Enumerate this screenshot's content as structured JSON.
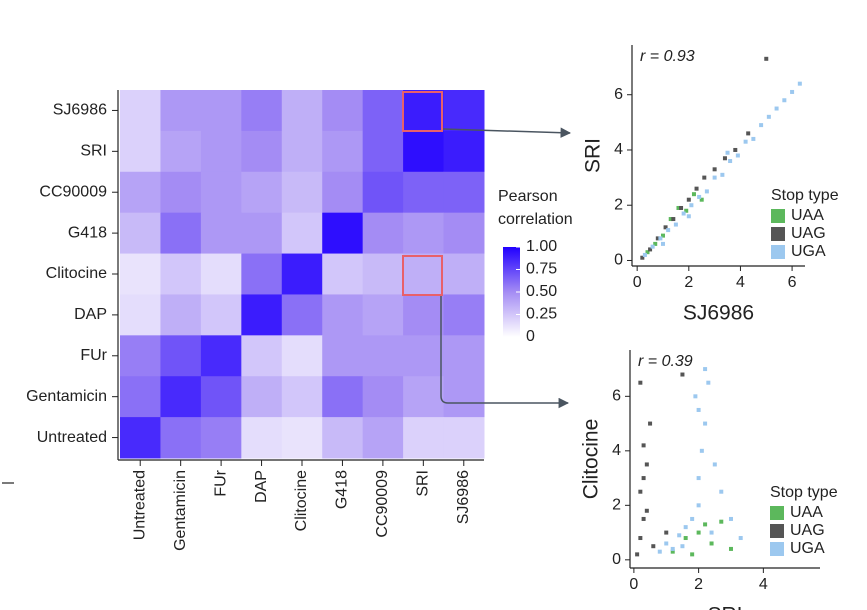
{
  "chart_data": [
    {
      "type": "heatmap",
      "rows": [
        "SJ6986",
        "SRI",
        "CC90009",
        "G418",
        "Clitocine",
        "DAP",
        "FUr",
        "Gentamicin",
        "Untreated"
      ],
      "columns": [
        "Untreated",
        "Gentamicin",
        "FUr",
        "DAP",
        "Clitocine",
        "G418",
        "CC90009",
        "SRI",
        "SJ6986"
      ],
      "values": [
        [
          0.2,
          0.45,
          0.45,
          0.55,
          0.35,
          0.5,
          0.65,
          0.9,
          0.85
        ],
        [
          0.2,
          0.4,
          0.45,
          0.5,
          0.35,
          0.45,
          0.65,
          0.95,
          0.9
        ],
        [
          0.4,
          0.5,
          0.45,
          0.4,
          0.3,
          0.5,
          0.7,
          0.65,
          0.65
        ],
        [
          0.3,
          0.6,
          0.45,
          0.45,
          0.25,
          0.95,
          0.5,
          0.45,
          0.5
        ],
        [
          0.12,
          0.25,
          0.15,
          0.6,
          0.9,
          0.25,
          0.3,
          0.35,
          0.35
        ],
        [
          0.15,
          0.35,
          0.25,
          0.9,
          0.6,
          0.45,
          0.4,
          0.5,
          0.55
        ],
        [
          0.55,
          0.7,
          0.85,
          0.25,
          0.15,
          0.45,
          0.45,
          0.45,
          0.45
        ],
        [
          0.6,
          0.85,
          0.7,
          0.35,
          0.25,
          0.6,
          0.5,
          0.4,
          0.45
        ],
        [
          0.85,
          0.6,
          0.55,
          0.15,
          0.12,
          0.3,
          0.4,
          0.2,
          0.2
        ]
      ],
      "colormap": [
        "#ffffff",
        "#a48cf4",
        "#2100ff"
      ],
      "clim": [
        0,
        1
      ],
      "legend_title": [
        "Pearson",
        "correlation"
      ],
      "cticks": [
        0,
        0.25,
        {
          "value": 0.5,
          "label": "0.50"
        },
        0.75,
        {
          "value": 1,
          "label": "1.00"
        }
      ]
    },
    {
      "type": "scatter",
      "xlabel": "SJ6986",
      "ylabel": "SRI",
      "annotation": "r = 0.93",
      "xlim": [
        -0.2,
        6.5
      ],
      "ylim": [
        -0.2,
        7.8
      ],
      "xticks": [
        0,
        2,
        4,
        6
      ],
      "yticks": [
        0,
        2,
        4,
        6
      ],
      "legend_title": "Stop type",
      "series": [
        {
          "name": "UAA",
          "color": "#5cb85c",
          "x": [
            0.4,
            0.7,
            1.0,
            1.3,
            1.6,
            1.9,
            2.2,
            2.5
          ],
          "values": [
            0.3,
            0.6,
            0.9,
            1.5,
            1.9,
            1.8,
            2.4,
            2.2
          ]
        },
        {
          "name": "UAG",
          "color": "#555555",
          "x": [
            0.2,
            0.5,
            0.8,
            1.1,
            1.4,
            1.7,
            2.0,
            2.3,
            2.6,
            3.0,
            3.4,
            3.8,
            4.3,
            5.0
          ],
          "values": [
            0.1,
            0.4,
            0.8,
            1.2,
            1.5,
            1.9,
            2.2,
            2.6,
            3.0,
            3.3,
            3.7,
            4.0,
            4.6,
            7.3
          ]
        },
        {
          "name": "UGA",
          "color": "#9cc8ef",
          "x": [
            0.3,
            0.6,
            0.9,
            1.2,
            1.5,
            1.8,
            2.1,
            2.4,
            2.7,
            3.0,
            3.3,
            3.6,
            3.9,
            4.2,
            4.5,
            4.8,
            5.1,
            5.4,
            5.7,
            6.0,
            6.3,
            2.0,
            3.5,
            1.0
          ],
          "values": [
            0.2,
            0.5,
            0.8,
            1.1,
            1.3,
            1.7,
            2.0,
            2.3,
            2.5,
            3.0,
            3.1,
            3.6,
            3.8,
            4.3,
            4.4,
            4.9,
            5.2,
            5.5,
            5.8,
            6.1,
            6.4,
            1.6,
            3.9,
            0.6
          ]
        }
      ]
    },
    {
      "type": "scatter",
      "xlabel": "SRI",
      "ylabel": "Clitocine",
      "annotation": "r = 0.39",
      "xlim": [
        -0.12,
        5.75
      ],
      "ylim": [
        -0.3,
        7.7
      ],
      "xticks": [
        0,
        2,
        4
      ],
      "yticks": [
        0,
        2,
        4,
        6
      ],
      "legend_title": "Stop type",
      "series": [
        {
          "name": "UAA",
          "color": "#5cb85c",
          "x": [
            1.2,
            1.6,
            2.0,
            2.4,
            2.7,
            3.0,
            1.8,
            2.2
          ],
          "values": [
            0.3,
            0.8,
            1.0,
            0.6,
            1.4,
            0.4,
            0.2,
            1.3
          ]
        },
        {
          "name": "UAG",
          "color": "#555555",
          "x": [
            0.1,
            0.2,
            0.3,
            0.2,
            0.4,
            0.3,
            0.5,
            0.2,
            0.6,
            1.0,
            1.5,
            0.3,
            0.4
          ],
          "values": [
            0.2,
            0.8,
            1.5,
            2.5,
            3.5,
            4.2,
            5.0,
            6.5,
            0.5,
            1.0,
            6.8,
            3.0,
            1.8
          ]
        },
        {
          "name": "UGA",
          "color": "#9cc8ef",
          "x": [
            0.8,
            1.0,
            1.2,
            1.4,
            1.6,
            1.8,
            2.0,
            2.0,
            2.1,
            2.2,
            2.3,
            2.5,
            2.7,
            3.0,
            3.3,
            1.9,
            2.2,
            2.4,
            1.5,
            2.0
          ],
          "values": [
            0.3,
            0.6,
            0.4,
            0.9,
            1.2,
            1.5,
            2.0,
            3.0,
            4.0,
            5.0,
            6.5,
            3.5,
            2.5,
            1.5,
            0.8,
            6.0,
            7.0,
            1.0,
            0.5,
            5.5
          ]
        }
      ]
    }
  ]
}
